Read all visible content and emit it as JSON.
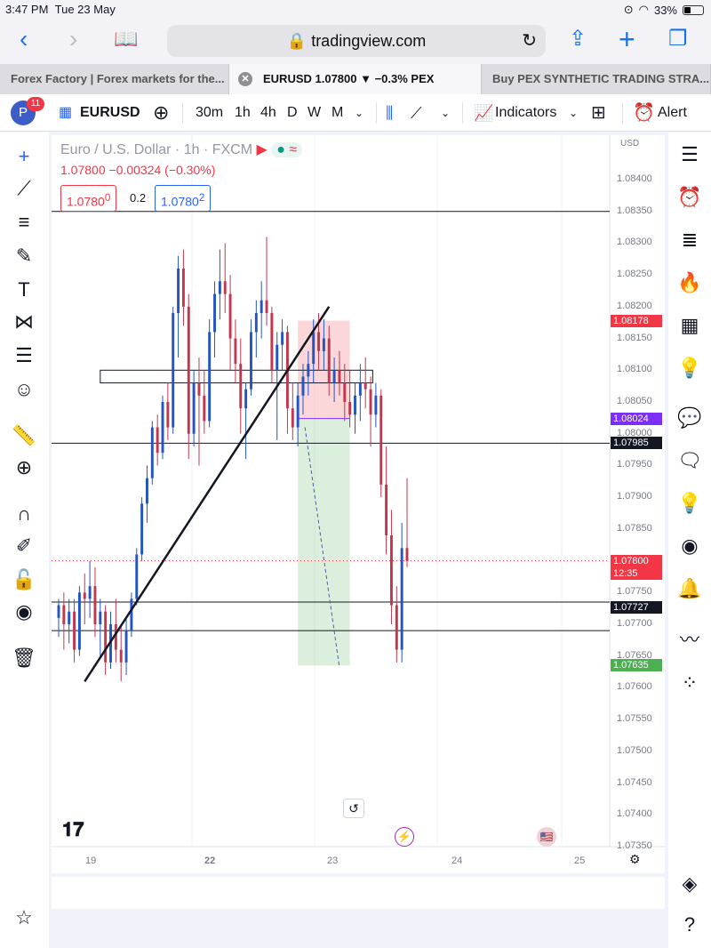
{
  "status": {
    "time": "3:47 PM",
    "date": "Tue 23 May",
    "battery": "33%"
  },
  "browser": {
    "url": "tradingview.com"
  },
  "tabs": [
    {
      "label": "Forex Factory | Forex markets for the..."
    },
    {
      "label": "EURUSD 1.07800 ▼ −0.3% PEX"
    },
    {
      "label": "Buy PEX SYNTHETIC TRADING STRA..."
    }
  ],
  "toolbar": {
    "avatar_letter": "P",
    "badge": "11",
    "symbol": "EURUSD",
    "intervals": [
      "30m",
      "1h",
      "4h",
      "D",
      "W",
      "M"
    ],
    "indicators_label": "Indicators",
    "alert_label": "Alert"
  },
  "legend": {
    "title": "Euro / U.S. Dollar · 1h · FXCM",
    "ohlc": "1.07800  −0.00324 (−0.30%)",
    "sell": "1.0780",
    "sell_sup": "0",
    "spread": "0.2",
    "buy": "1.0780",
    "buy_sup": "2",
    "currency": "USD"
  },
  "chart_data": {
    "type": "candlestick",
    "symbol": "EURUSD",
    "timeframe": "1h",
    "yaxis": {
      "min": 1.0735,
      "max": 1.084
    },
    "y_ticks": [
      "1.08400",
      "1.08350",
      "1.08300",
      "1.08250",
      "1.08200",
      "1.08150",
      "1.08100",
      "1.08050",
      "1.08000",
      "1.07950",
      "1.07900",
      "1.07850",
      "1.07750",
      "1.07700",
      "1.07650",
      "1.07600",
      "1.07550",
      "1.07500",
      "1.07450",
      "1.07400",
      "1.07350"
    ],
    "x_ticks": [
      "19",
      "22",
      "23",
      "24",
      "25"
    ],
    "price_tags": [
      {
        "value": "1.08178",
        "color": "#f23645"
      },
      {
        "value": "1.08024",
        "color": "#7b2ff7"
      },
      {
        "value": "1.07985",
        "color": "#131722"
      },
      {
        "value": "1.07800",
        "time": "12:35",
        "color": "#f23645"
      },
      {
        "value": "1.07727",
        "color": "#131722"
      },
      {
        "value": "1.07635",
        "color": "#4caf50"
      }
    ],
    "horizontal_lines": [
      1.0835,
      1.07985,
      1.07735,
      1.0769
    ],
    "candles": [
      [
        1.0771,
        1.0774,
        1.0768,
        1.0773
      ],
      [
        1.0773,
        1.0775,
        1.0766,
        1.077
      ],
      [
        1.077,
        1.0774,
        1.0767,
        1.0772
      ],
      [
        1.0772,
        1.0774,
        1.0764,
        1.0766
      ],
      [
        1.0766,
        1.0776,
        1.0765,
        1.0775
      ],
      [
        1.0775,
        1.0778,
        1.077,
        1.0774
      ],
      [
        1.0774,
        1.078,
        1.0771,
        1.0776
      ],
      [
        1.0776,
        1.0779,
        1.0768,
        1.077
      ],
      [
        1.077,
        1.0774,
        1.0765,
        1.0772
      ],
      [
        1.0772,
        1.0773,
        1.0762,
        1.0764
      ],
      [
        1.0764,
        1.0772,
        1.0763,
        1.077
      ],
      [
        1.077,
        1.0774,
        1.0764,
        1.0766
      ],
      [
        1.0766,
        1.077,
        1.0761,
        1.0764
      ],
      [
        1.0764,
        1.0771,
        1.0762,
        1.0769
      ],
      [
        1.0769,
        1.0775,
        1.0768,
        1.0774
      ],
      [
        1.0774,
        1.0782,
        1.0773,
        1.0781
      ],
      [
        1.0781,
        1.079,
        1.078,
        1.0789
      ],
      [
        1.0789,
        1.0795,
        1.0786,
        1.0793
      ],
      [
        1.0793,
        1.0802,
        1.0792,
        1.0801
      ],
      [
        1.0801,
        1.0803,
        1.0795,
        1.0797
      ],
      [
        1.0797,
        1.0806,
        1.0796,
        1.0805
      ],
      [
        1.0805,
        1.0808,
        1.0799,
        1.0801
      ],
      [
        1.0801,
        1.082,
        1.08,
        1.0819
      ],
      [
        1.0819,
        1.0828,
        1.0812,
        1.0826
      ],
      [
        1.0826,
        1.0829,
        1.0817,
        1.082
      ],
      [
        1.082,
        1.0822,
        1.0796,
        1.08
      ],
      [
        1.08,
        1.081,
        1.0798,
        1.0808
      ],
      [
        1.0808,
        1.0812,
        1.0795,
        1.0806
      ],
      [
        1.0806,
        1.081,
        1.08,
        1.0802
      ],
      [
        1.0802,
        1.0818,
        1.0801,
        1.0816
      ],
      [
        1.0816,
        1.0824,
        1.0812,
        1.0822
      ],
      [
        1.0822,
        1.0829,
        1.0818,
        1.0824
      ],
      [
        1.0824,
        1.083,
        1.0819,
        1.0822
      ],
      [
        1.0822,
        1.0825,
        1.081,
        1.0815
      ],
      [
        1.0815,
        1.0818,
        1.0808,
        1.0811
      ],
      [
        1.0811,
        1.0815,
        1.08,
        1.0804
      ],
      [
        1.0804,
        1.0808,
        1.0796,
        1.0807
      ],
      [
        1.0807,
        1.0818,
        1.0806,
        1.0816
      ],
      [
        1.0816,
        1.0821,
        1.0812,
        1.0819
      ],
      [
        1.0819,
        1.0824,
        1.0815,
        1.0821
      ],
      [
        1.0821,
        1.0831,
        1.0817,
        1.0819
      ],
      [
        1.0819,
        1.082,
        1.0808,
        1.081
      ],
      [
        1.081,
        1.0816,
        1.0799,
        1.0814
      ],
      [
        1.0814,
        1.0818,
        1.081,
        1.0816
      ],
      [
        1.0816,
        1.0817,
        1.08,
        1.0804
      ],
      [
        1.0804,
        1.0808,
        1.0799,
        1.0801
      ],
      [
        1.0801,
        1.0808,
        1.0798,
        1.0806
      ],
      [
        1.0806,
        1.0811,
        1.0803,
        1.0809
      ],
      [
        1.0809,
        1.0813,
        1.0806,
        1.0811
      ],
      [
        1.0811,
        1.0818,
        1.0808,
        1.0816
      ],
      [
        1.0816,
        1.0819,
        1.081,
        1.0813
      ],
      [
        1.0813,
        1.0818,
        1.081,
        1.0815
      ],
      [
        1.0815,
        1.0817,
        1.0806,
        1.0808
      ],
      [
        1.0808,
        1.0812,
        1.0805,
        1.081
      ],
      [
        1.081,
        1.0813,
        1.0806,
        1.0808
      ],
      [
        1.0808,
        1.0811,
        1.0802,
        1.0805
      ],
      [
        1.0805,
        1.081,
        1.0801,
        1.0803
      ],
      [
        1.0803,
        1.0808,
        1.08,
        1.0806
      ],
      [
        1.0806,
        1.0811,
        1.0802,
        1.0808
      ],
      [
        1.0808,
        1.0812,
        1.0804,
        1.0807
      ],
      [
        1.0807,
        1.0809,
        1.0798,
        1.0803
      ],
      [
        1.0803,
        1.0808,
        1.0801,
        1.0806
      ],
      [
        1.0806,
        1.0807,
        1.079,
        1.0792
      ],
      [
        1.0792,
        1.0798,
        1.0781,
        1.0784
      ],
      [
        1.0784,
        1.0788,
        1.077,
        1.0773
      ],
      [
        1.0773,
        1.0776,
        1.0764,
        1.0766
      ],
      [
        1.0766,
        1.0786,
        1.0764,
        1.0782
      ],
      [
        1.0782,
        1.0793,
        1.0779,
        1.078
      ]
    ],
    "trendline": {
      "from": [
        5,
        1.0761
      ],
      "to": [
        52,
        1.082
      ]
    },
    "rect_zone": {
      "from_index": 8,
      "to_index": 58,
      "top": 1.081,
      "bottom": 1.0808
    },
    "position": {
      "from_index": 46,
      "to_index": 56,
      "entry": 1.08024,
      "stop": 1.08178,
      "target": 1.07635
    }
  },
  "colors": {
    "up": "#2455c3",
    "down": "#c2374e",
    "accent": "#2962ff",
    "sell": "#f23645",
    "buy": "#2962ff"
  }
}
